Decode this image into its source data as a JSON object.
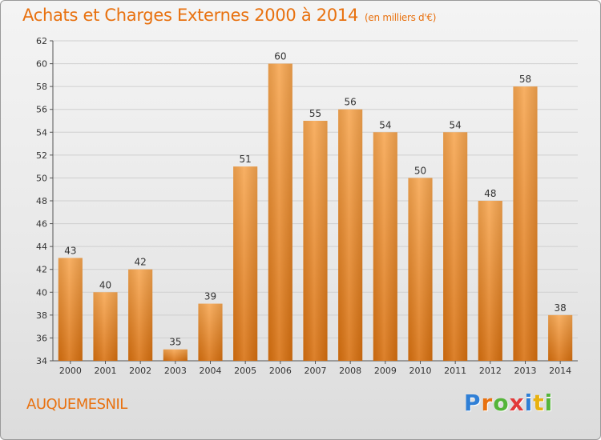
{
  "header": {
    "title": "Achats et Charges Externes 2000 à 2014",
    "subtitle": "(en milliers d'€)"
  },
  "footer": {
    "commune": "AUQUEMESNIL",
    "logo_letters": [
      {
        "char": "P",
        "color": "#2f7fd6"
      },
      {
        "char": "r",
        "color": "#e8710f"
      },
      {
        "char": "o",
        "color": "#55b53a"
      },
      {
        "char": "x",
        "color": "#e23a3a"
      },
      {
        "char": "i",
        "color": "#2f7fd6"
      },
      {
        "char": "t",
        "color": "#e8b10f"
      },
      {
        "char": "i",
        "color": "#55b53a"
      }
    ]
  },
  "colors": {
    "bar_top": "#f7a650",
    "bar_bottom": "#d8700f",
    "bar_side": "#e07d1f",
    "grid": "#cfcfcf",
    "axis": "#555555"
  },
  "chart_data": {
    "type": "bar",
    "title": "Achats et Charges Externes 2000 à 2014",
    "subtitle": "(en milliers d'€)",
    "xlabel": "",
    "ylabel": "",
    "categories": [
      "2000",
      "2001",
      "2002",
      "2003",
      "2004",
      "2005",
      "2006",
      "2007",
      "2008",
      "2009",
      "2010",
      "2011",
      "2012",
      "2013",
      "2014"
    ],
    "values": [
      43,
      40,
      42,
      35,
      39,
      51,
      60,
      55,
      56,
      54,
      50,
      54,
      48,
      58,
      38
    ],
    "ylim": [
      34,
      62
    ],
    "yticks": [
      34,
      36,
      38,
      40,
      42,
      44,
      46,
      48,
      50,
      52,
      54,
      56,
      58,
      60,
      62
    ],
    "grid": true,
    "legend": "none"
  }
}
